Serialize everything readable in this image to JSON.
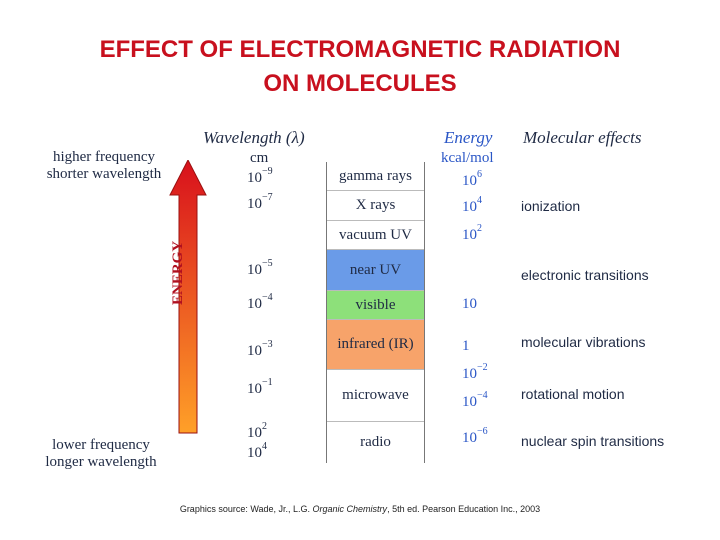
{
  "title": {
    "line1": "EFFECT OF ELECTROMAGNETIC RADIATION",
    "line2": "ON MOLECULES"
  },
  "headers": {
    "wavelength": "Wavelength (λ)",
    "wavelength_unit": "cm",
    "energy": "Energy",
    "energy_unit": "kcal/mol",
    "effects": "Molecular effects"
  },
  "arrow": {
    "label": "ENERGY",
    "top_text": [
      "higher frequency",
      "shorter wavelength"
    ],
    "bottom_text": [
      "lower frequency",
      "longer wavelength"
    ],
    "colors": {
      "top": "#d8101c",
      "bottom": "#ffa028"
    }
  },
  "wavelengths": [
    {
      "base": "10",
      "exp": "−9"
    },
    {
      "base": "10",
      "exp": "−7"
    },
    {
      "base": "10",
      "exp": "−5"
    },
    {
      "base": "10",
      "exp": "−4"
    },
    {
      "base": "10",
      "exp": "−3"
    },
    {
      "base": "10",
      "exp": "−1"
    },
    {
      "base": "10",
      "exp": "2"
    },
    {
      "base": "10",
      "exp": "4"
    }
  ],
  "bands": [
    {
      "label": "gamma rays",
      "color": "#ffffff"
    },
    {
      "label": "X rays",
      "color": "#ffffff"
    },
    {
      "label": "vacuum UV",
      "color": "#ffffff"
    },
    {
      "label": "near UV",
      "color": "#6a9be8"
    },
    {
      "label": "visible",
      "color": "#8de07a"
    },
    {
      "label": "infrared (IR)",
      "color": "#f7a36a"
    },
    {
      "label": "microwave",
      "color": "#ffffff"
    },
    {
      "label": "radio",
      "color": "#ffffff"
    }
  ],
  "energies": [
    {
      "base": "10",
      "exp": "6"
    },
    {
      "base": "10",
      "exp": "4"
    },
    {
      "base": "10",
      "exp": "2"
    },
    {
      "base": "10",
      "exp": ""
    },
    {
      "base": "1",
      "exp": ""
    },
    {
      "base": "10",
      "exp": "−2"
    },
    {
      "base": "10",
      "exp": "−4"
    },
    {
      "base": "10",
      "exp": "−6"
    }
  ],
  "effects": [
    "ionization",
    "electronic transitions",
    "molecular vibrations",
    "rotational motion",
    "nuclear spin transitions"
  ],
  "footer": {
    "prefix": "Graphics source: Wade, Jr., L.G. ",
    "book": "Organic Chemistry",
    "suffix": ", 5th ed. Pearson Education Inc., 2003"
  }
}
